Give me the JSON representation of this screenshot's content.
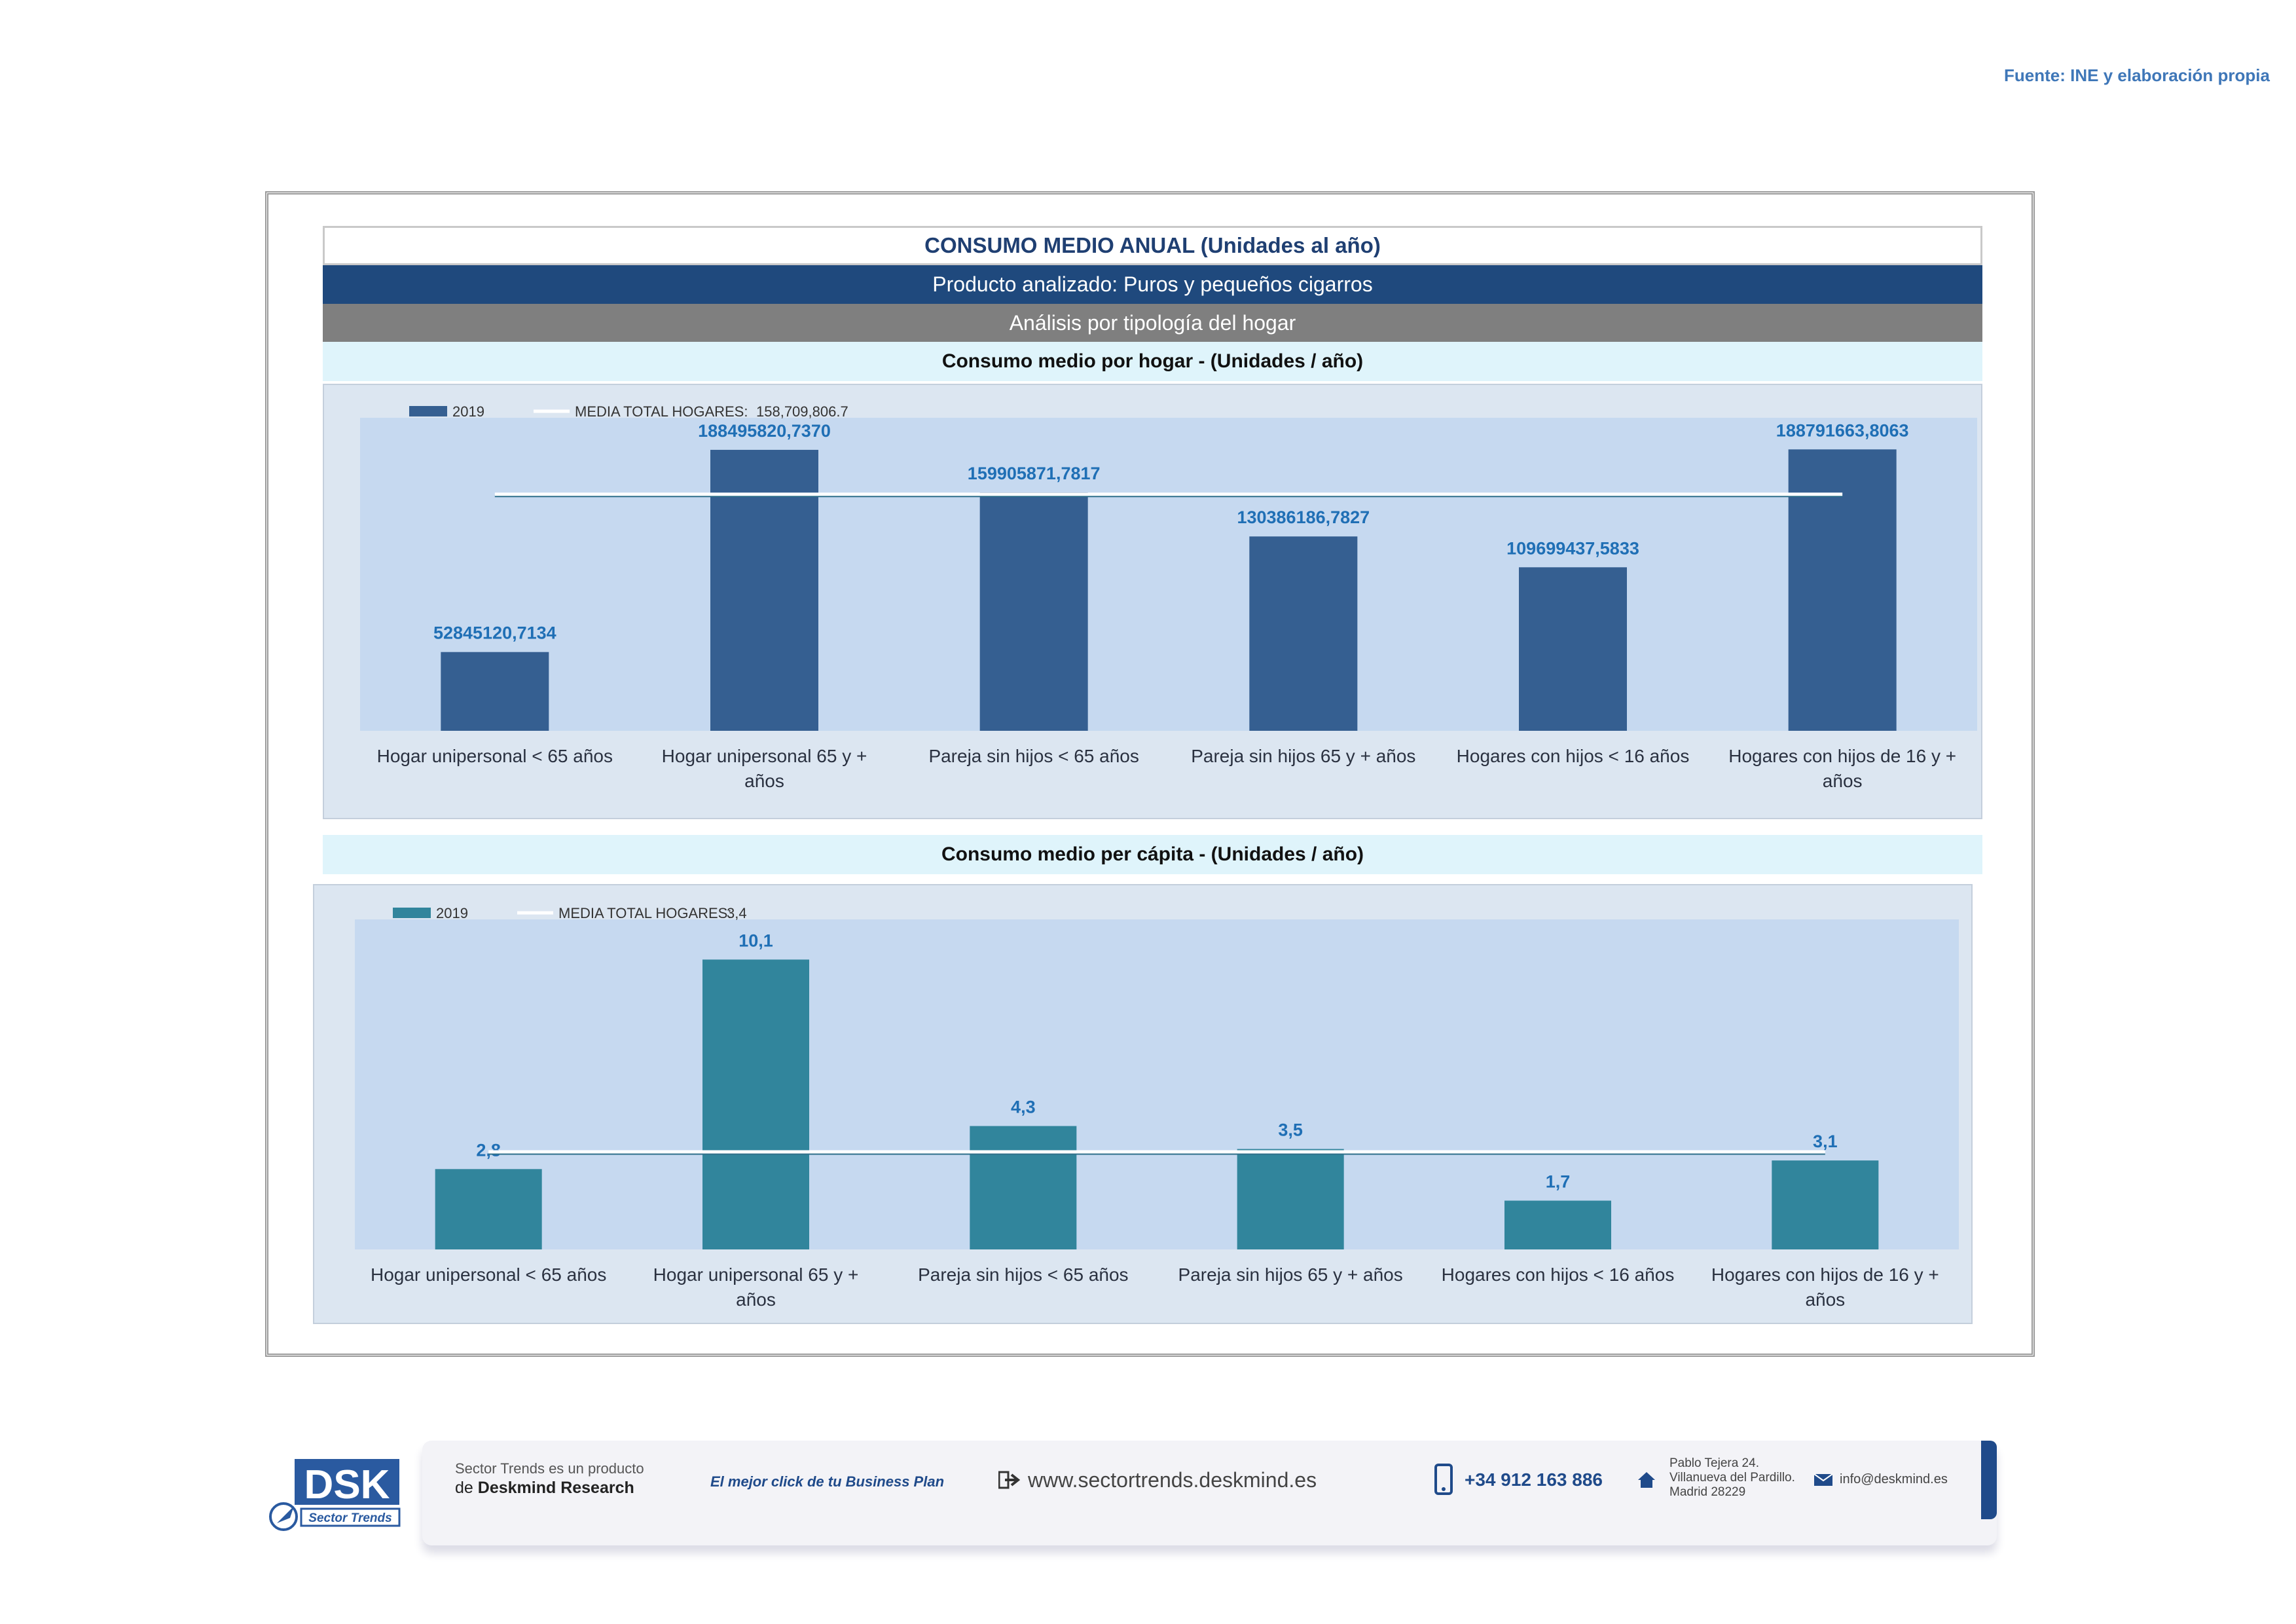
{
  "source_note": "Fuente: INE y elaboración propia",
  "header": {
    "title": "CONSUMO MEDIO ANUAL (Unidades al año)",
    "product": "Producto analizado: Puros y pequeños cigarros",
    "analysis": "Análisis por tipología del hogar"
  },
  "colors": {
    "bar_hogar": "#355f91",
    "bar_percapita": "#31859c",
    "panel_bg": "#dce6f1",
    "plot_bg": "#c6d9f0",
    "label_color": "#1f6fb5",
    "header_blue": "#1f497d",
    "header_gray": "#7f7f7f",
    "subtitle_bg": "#dff4fb"
  },
  "chart_data": [
    {
      "type": "bar",
      "title": "Consumo medio por hogar -  (Unidades / año)",
      "categories": [
        "Hogar unipersonal < 65 años",
        "Hogar unipersonal  65 y + años",
        "Pareja sin hijos < 65 años",
        "Pareja sin hijos 65 y + años",
        "Hogares con hijos < 16 años",
        "Hogares con hijos de 16 y + años"
      ],
      "series": [
        {
          "name": "2019",
          "values": [
            52845120.7134,
            188495820.737,
            159905871.7817,
            130386186.7827,
            109699437.5833,
            188791663.8063
          ]
        }
      ],
      "value_labels": [
        "52845120,7134",
        "188495820,7370",
        "159905871,7817",
        "130386186,7827",
        "109699437,5833",
        "188791663,8063"
      ],
      "reference_line": {
        "legend": "MEDIA TOTAL  HOGARES:",
        "value": 158709806.7,
        "value_label": "158,709,806.7"
      },
      "ylim": [
        0,
        210000000
      ],
      "legend_position": "top-left",
      "grid": false
    },
    {
      "type": "bar",
      "title": "Consumo medio per cápita -  (Unidades / año)",
      "categories": [
        "Hogar unipersonal < 65 años",
        "Hogar unipersonal  65 y + años",
        "Pareja sin hijos < 65 años",
        "Pareja sin hijos 65 y + años",
        "Hogares con hijos < 16 años",
        "Hogares con hijos de 16 y + años"
      ],
      "series": [
        {
          "name": "2019",
          "values": [
            2.8,
            10.1,
            4.3,
            3.5,
            1.7,
            3.1
          ]
        }
      ],
      "value_labels": [
        "2,8",
        "10,1",
        "4,3",
        "3,5",
        "1,7",
        "3,1"
      ],
      "reference_line": {
        "legend": "MEDIA TOTAL  HOGARES:",
        "value": 3.4,
        "value_label": "3,4"
      },
      "ylim": [
        0,
        11.5
      ],
      "legend_position": "top-left",
      "grid": false
    }
  ],
  "footer": {
    "logo_text": "DSK",
    "logo_sub": "Sector Trends",
    "product_line1": "Sector Trends es un producto",
    "product_line2_prefix": "de",
    "product_line2_brand": "Deskmind Research",
    "slogan": "El mejor click de tu Business Plan",
    "website": "www.sectortrends.deskmind.es",
    "phone": "+34 912 163 886",
    "address_line1": "Pablo Tejera 24.",
    "address_line2": "Villanueva del Pardillo.",
    "address_line3": "Madrid 28229",
    "email": "info@deskmind.es",
    "icons": [
      "arrow-icon",
      "phone-icon",
      "home-icon",
      "mail-icon"
    ]
  }
}
